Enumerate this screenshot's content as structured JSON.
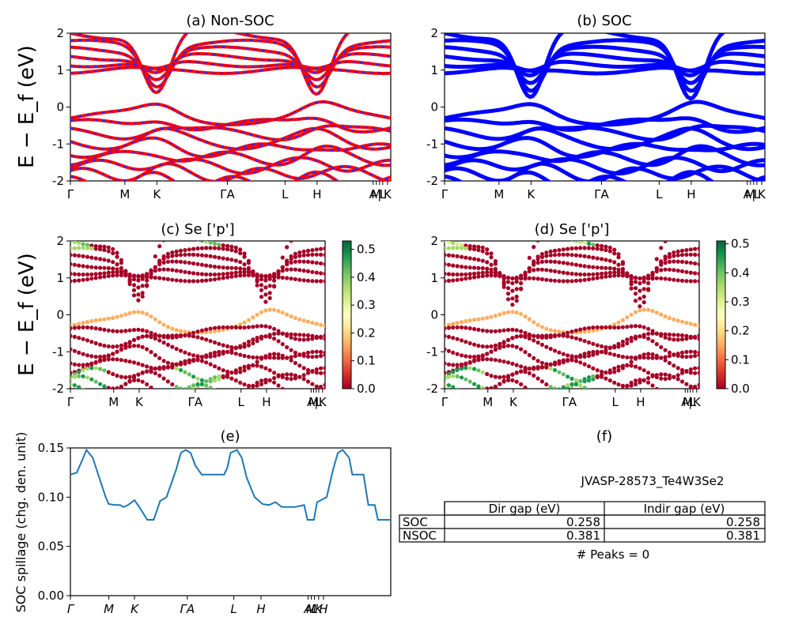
{
  "figure": {
    "ylabel_top": "E − E_f (eV)",
    "ylabel_mid": "E − E_f (eV)"
  },
  "panels": {
    "a": {
      "title": "(a) Non-SOC"
    },
    "b": {
      "title": "(b) SOC"
    },
    "c": {
      "title": "(c)  Se ['p']"
    },
    "d": {
      "title": "(d) Se ['p']"
    },
    "e": {
      "title": "(e)",
      "ylabel": "SOC spillage (chg. den. unit)"
    },
    "f": {
      "title": "(f)",
      "material": "JVASP-28573_Te4W3Se2",
      "table": {
        "headers": [
          "",
          "Dir gap (eV)",
          "Indir gap (eV)"
        ],
        "rows": [
          [
            "SOC",
            "0.258",
            "0.258"
          ],
          [
            "NSOC",
            "0.381",
            "0.381"
          ]
        ]
      },
      "peaks": "# Peaks = 0"
    }
  },
  "colors": {
    "nonsoc_line": "#ff0000",
    "nonsoc_dash": "#2a2aff",
    "soc_line": "#0000ff",
    "spillage_line": "#1f77b4"
  },
  "colorbars": {
    "c": {
      "ticks": [
        "0.0",
        "0.1",
        "0.2",
        "0.3",
        "0.4",
        "0.5"
      ],
      "max": 0.53
    },
    "d": {
      "ticks": [
        "0.0",
        "0.1",
        "0.2",
        "0.3",
        "0.4",
        "0.5"
      ],
      "max": 0.51
    }
  },
  "chart_data": [
    {
      "panel": "a",
      "type": "line",
      "ylim": [
        -2,
        2
      ],
      "yticks": [
        -2,
        -1,
        0,
        1,
        2
      ],
      "xticks": [
        {
          "label": "Γ",
          "x": 0
        },
        {
          "label": "M",
          "x": 0.17
        },
        {
          "label": "K",
          "x": 0.27
        },
        {
          "label": "ΓA",
          "x": 0.49
        },
        {
          "label": "L",
          "x": 0.67
        },
        {
          "label": "H",
          "x": 0.77
        },
        {
          "label": "A",
          "x": 0.945
        },
        {
          "label": "M",
          "x": 0.955
        },
        {
          "label": "|",
          "x": 0.965
        },
        {
          "label": "L",
          "x": 0.975
        },
        {
          "label": "K",
          "x": 0.99
        }
      ],
      "conduction_min_eV": 0.38,
      "valence_max_eV": -0.02
    },
    {
      "panel": "b",
      "type": "line",
      "ylim": [
        -2,
        2
      ],
      "yticks": [
        -2,
        -1,
        0,
        1,
        2
      ],
      "xticks": [
        {
          "label": "Γ",
          "x": 0
        },
        {
          "label": "M",
          "x": 0.17
        },
        {
          "label": "K",
          "x": 0.27
        },
        {
          "label": "ΓA",
          "x": 0.49
        },
        {
          "label": "L",
          "x": 0.67
        },
        {
          "label": "H",
          "x": 0.77
        },
        {
          "label": "A",
          "x": 0.945
        },
        {
          "label": "M",
          "x": 0.955
        },
        {
          "label": "|",
          "x": 0.965
        },
        {
          "label": "L",
          "x": 0.975
        },
        {
          "label": "K",
          "x": 0.99
        }
      ],
      "conduction_min_eV": 0.26,
      "valence_max_eV": -0.02
    },
    {
      "panel": "c",
      "type": "scatter",
      "ylim": [
        -2,
        2
      ],
      "yticks": [
        -2,
        -1,
        0,
        1,
        2
      ],
      "xticks": [
        {
          "label": "Γ",
          "x": 0
        },
        {
          "label": "M",
          "x": 0.17
        },
        {
          "label": "K",
          "x": 0.27
        },
        {
          "label": "ΓA",
          "x": 0.49
        },
        {
          "label": "L",
          "x": 0.67
        },
        {
          "label": "H",
          "x": 0.77
        },
        {
          "label": "A",
          "x": 0.945
        },
        {
          "label": "M",
          "x": 0.955
        },
        {
          "label": "|",
          "x": 0.965
        },
        {
          "label": "L",
          "x": 0.975
        },
        {
          "label": "K",
          "x": 0.99
        }
      ],
      "colormap": "RdYlGn",
      "clim": [
        0,
        0.53
      ]
    },
    {
      "panel": "d",
      "type": "scatter",
      "ylim": [
        -2,
        2
      ],
      "yticks": [
        -2,
        -1,
        0,
        1,
        2
      ],
      "xticks": [
        {
          "label": "Γ",
          "x": 0
        },
        {
          "label": "M",
          "x": 0.17
        },
        {
          "label": "K",
          "x": 0.27
        },
        {
          "label": "ΓA",
          "x": 0.49
        },
        {
          "label": "L",
          "x": 0.67
        },
        {
          "label": "H",
          "x": 0.77
        },
        {
          "label": "A",
          "x": 0.945
        },
        {
          "label": "M",
          "x": 0.955
        },
        {
          "label": "|",
          "x": 0.965
        },
        {
          "label": "L",
          "x": 0.975
        },
        {
          "label": "K",
          "x": 0.99
        }
      ],
      "colormap": "RdYlGn",
      "clim": [
        0,
        0.51
      ]
    },
    {
      "panel": "e",
      "type": "line",
      "ylim": [
        0,
        0.15
      ],
      "yticks": [
        "0.00",
        "0.05",
        "0.10",
        "0.15"
      ],
      "xticks": [
        {
          "label": "Γ",
          "x": 0
        },
        {
          "label": "M",
          "x": 0.12
        },
        {
          "label": "K",
          "x": 0.2
        },
        {
          "label": "ΓA",
          "x": 0.365
        },
        {
          "label": "L",
          "x": 0.51
        },
        {
          "label": "H",
          "x": 0.595
        },
        {
          "label": "A",
          "x": 0.742
        },
        {
          "label": "M",
          "x": 0.752
        },
        {
          "label": "L",
          "x": 0.762
        },
        {
          "label": "K",
          "x": 0.775
        },
        {
          "label": "H",
          "x": 0.79
        }
      ],
      "series": [
        {
          "x": [
            0,
            0.02,
            0.04,
            0.05,
            0.07,
            0.09,
            0.11,
            0.12,
            0.14,
            0.155,
            0.165,
            0.18,
            0.2,
            0.215,
            0.24,
            0.26,
            0.28,
            0.3,
            0.33,
            0.345,
            0.36,
            0.375,
            0.39,
            0.41,
            0.42,
            0.45,
            0.48,
            0.49,
            0.5,
            0.52,
            0.535,
            0.55,
            0.575,
            0.6,
            0.62,
            0.64,
            0.66,
            0.7,
            0.73,
            0.74,
            0.76,
            0.77,
            0.8,
            0.82,
            0.835,
            0.85,
            0.87,
            0.88,
            0.915,
            0.93,
            0.95,
            0.96,
            1.0
          ],
          "y": [
            0.123,
            0.125,
            0.14,
            0.148,
            0.14,
            0.12,
            0.1,
            0.093,
            0.092,
            0.092,
            0.09,
            0.092,
            0.097,
            0.09,
            0.077,
            0.077,
            0.096,
            0.1,
            0.128,
            0.145,
            0.148,
            0.145,
            0.132,
            0.123,
            0.123,
            0.123,
            0.123,
            0.13,
            0.145,
            0.148,
            0.14,
            0.12,
            0.1,
            0.093,
            0.092,
            0.095,
            0.09,
            0.09,
            0.092,
            0.077,
            0.077,
            0.095,
            0.1,
            0.128,
            0.145,
            0.148,
            0.14,
            0.123,
            0.123,
            0.092,
            0.092,
            0.077,
            0.077
          ]
        }
      ]
    }
  ]
}
